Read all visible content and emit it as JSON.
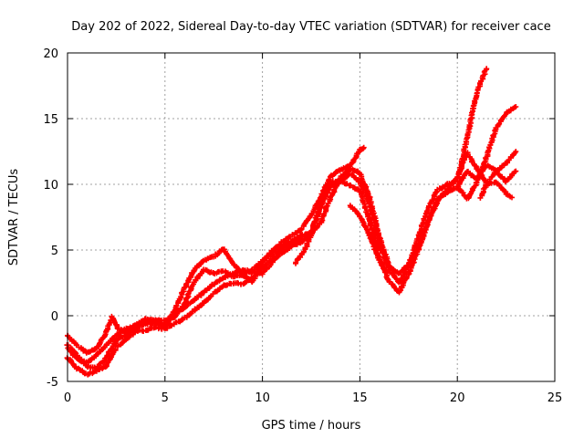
{
  "chart_data": {
    "type": "scatter",
    "title": "Day 202 of 2022, Sidereal Day-to-day VTEC variation (SDTVAR) for receiver cace",
    "xlabel": "GPS time / hours",
    "ylabel": "SDTVAR / TECUs",
    "xlim": [
      0,
      25
    ],
    "ylim": [
      -5,
      20
    ],
    "xticks": [
      0,
      5,
      10,
      15,
      20,
      25
    ],
    "yticks": [
      -5,
      0,
      5,
      10,
      15,
      20
    ],
    "xtick_labels": [
      "0",
      "5",
      "10",
      "15",
      "20",
      "25"
    ],
    "ytick_labels": [
      "-5",
      "0",
      "5",
      "10",
      "15",
      "20"
    ],
    "grid": true,
    "marker": "+",
    "color": "#ff0000",
    "series": [
      {
        "name": "trace-1",
        "points": [
          [
            0.0,
            -1.5
          ],
          [
            0.5,
            -2.3
          ],
          [
            1.0,
            -2.8
          ],
          [
            1.5,
            -2.5
          ],
          [
            2.0,
            -1.2
          ],
          [
            2.3,
            -0.1
          ],
          [
            2.6,
            -1.0
          ],
          [
            3.0,
            -1.3
          ],
          [
            3.5,
            -0.7
          ],
          [
            4.0,
            -0.2
          ],
          [
            4.5,
            -0.4
          ],
          [
            5.0,
            -0.9
          ],
          [
            5.5,
            0.4
          ],
          [
            6.0,
            2.1
          ],
          [
            6.5,
            3.5
          ],
          [
            7.0,
            4.2
          ],
          [
            7.5,
            4.5
          ],
          [
            8.0,
            5.1
          ],
          [
            8.5,
            4.0
          ],
          [
            9.0,
            3.1
          ],
          [
            9.5,
            2.6
          ],
          [
            10.0,
            4.1
          ],
          [
            10.5,
            4.9
          ],
          [
            11.0,
            5.6
          ],
          [
            11.5,
            6.1
          ],
          [
            12.0,
            6.6
          ],
          [
            12.5,
            7.6
          ],
          [
            13.0,
            9.1
          ],
          [
            13.5,
            10.6
          ],
          [
            14.0,
            11.1
          ],
          [
            14.5,
            11.4
          ],
          [
            15.0,
            12.6
          ],
          [
            15.2,
            12.8
          ]
        ]
      },
      {
        "name": "trace-2",
        "points": [
          [
            0.0,
            -2.5
          ],
          [
            0.5,
            -3.3
          ],
          [
            1.0,
            -3.6
          ],
          [
            1.5,
            -3.0
          ],
          [
            2.0,
            -2.2
          ],
          [
            2.5,
            -1.5
          ],
          [
            3.0,
            -1.0
          ],
          [
            3.5,
            -0.8
          ],
          [
            4.0,
            -0.5
          ],
          [
            4.5,
            -0.3
          ],
          [
            5.0,
            -0.4
          ],
          [
            5.5,
            -0.1
          ],
          [
            6.0,
            0.9
          ],
          [
            6.5,
            2.6
          ],
          [
            7.0,
            3.5
          ],
          [
            7.5,
            3.2
          ],
          [
            8.0,
            3.4
          ],
          [
            8.5,
            3.0
          ],
          [
            9.0,
            3.1
          ],
          [
            9.5,
            3.5
          ],
          [
            10.0,
            4.2
          ],
          [
            10.5,
            4.8
          ],
          [
            11.0,
            5.3
          ],
          [
            11.5,
            5.7
          ],
          [
            12.0,
            6.1
          ],
          [
            12.5,
            6.3
          ],
          [
            13.0,
            8.5
          ],
          [
            13.5,
            10.2
          ],
          [
            14.0,
            10.2
          ],
          [
            14.5,
            10.8
          ],
          [
            15.0,
            10.2
          ],
          [
            15.5,
            8.5
          ],
          [
            16.0,
            5.5
          ],
          [
            16.5,
            3.5
          ],
          [
            17.0,
            2.5
          ],
          [
            17.5,
            3.8
          ],
          [
            18.0,
            6.0
          ],
          [
            18.5,
            8.2
          ],
          [
            19.0,
            9.6
          ],
          [
            19.5,
            10.0
          ],
          [
            20.0,
            10.2
          ],
          [
            20.5,
            13.5
          ],
          [
            21.0,
            17.0
          ],
          [
            21.5,
            18.8
          ]
        ]
      },
      {
        "name": "trace-3",
        "points": [
          [
            0.0,
            -3.2
          ],
          [
            0.5,
            -4.0
          ],
          [
            1.0,
            -4.5
          ],
          [
            1.5,
            -4.2
          ],
          [
            2.0,
            -3.8
          ],
          [
            2.5,
            -2.4
          ],
          [
            3.0,
            -1.8
          ],
          [
            3.5,
            -1.2
          ],
          [
            4.0,
            -1.1
          ],
          [
            4.5,
            -0.9
          ],
          [
            5.0,
            -1.0
          ],
          [
            5.5,
            -0.6
          ],
          [
            6.0,
            -0.2
          ],
          [
            6.5,
            0.4
          ],
          [
            7.0,
            1.0
          ],
          [
            7.5,
            1.7
          ],
          [
            8.0,
            2.3
          ],
          [
            8.5,
            2.5
          ],
          [
            9.0,
            2.4
          ],
          [
            9.5,
            2.9
          ],
          [
            10.0,
            3.6
          ],
          [
            10.5,
            4.4
          ],
          [
            11.0,
            5.1
          ],
          [
            11.5,
            5.5
          ],
          [
            12.0,
            5.9
          ],
          [
            12.5,
            6.3
          ],
          [
            13.0,
            7.1
          ],
          [
            13.5,
            9.0
          ],
          [
            14.0,
            10.5
          ],
          [
            14.5,
            11.2
          ],
          [
            15.0,
            10.9
          ],
          [
            15.5,
            9.0
          ],
          [
            16.0,
            6.0
          ],
          [
            16.5,
            3.8
          ],
          [
            17.0,
            3.2
          ],
          [
            17.5,
            3.9
          ],
          [
            18.0,
            5.2
          ],
          [
            18.5,
            7.2
          ],
          [
            19.0,
            8.9
          ],
          [
            19.5,
            9.4
          ],
          [
            20.0,
            9.8
          ],
          [
            20.5,
            8.9
          ],
          [
            21.0,
            10.1
          ],
          [
            21.5,
            12.1
          ],
          [
            22.0,
            14.3
          ],
          [
            22.5,
            15.4
          ],
          [
            23.0,
            15.9
          ]
        ]
      },
      {
        "name": "trace-4",
        "points": [
          [
            0.0,
            -2.2
          ],
          [
            0.5,
            -3.0
          ],
          [
            1.0,
            -3.9
          ],
          [
            1.5,
            -4.0
          ],
          [
            2.0,
            -3.2
          ],
          [
            2.5,
            -1.8
          ],
          [
            3.0,
            -1.5
          ],
          [
            3.5,
            -1.0
          ],
          [
            4.0,
            -0.6
          ],
          [
            4.5,
            -0.6
          ],
          [
            5.0,
            -0.5
          ],
          [
            5.5,
            0.2
          ],
          [
            6.0,
            0.6
          ],
          [
            6.5,
            1.2
          ],
          [
            7.0,
            1.8
          ],
          [
            7.5,
            2.4
          ],
          [
            8.0,
            2.9
          ],
          [
            8.5,
            3.2
          ],
          [
            9.0,
            3.5
          ],
          [
            9.5,
            3.3
          ],
          [
            10.0,
            3.2
          ],
          [
            10.5,
            4.1
          ],
          [
            11.0,
            4.8
          ],
          [
            11.5,
            5.3
          ],
          [
            12.0,
            5.6
          ],
          [
            12.5,
            6.3
          ],
          [
            13.0,
            8.3
          ],
          [
            13.5,
            9.9
          ],
          [
            14.0,
            10.3
          ],
          [
            14.5,
            9.9
          ],
          [
            15.0,
            9.5
          ],
          [
            15.5,
            7.2
          ],
          [
            16.0,
            4.4
          ],
          [
            16.5,
            2.6
          ],
          [
            17.0,
            1.8
          ],
          [
            17.5,
            3.2
          ],
          [
            18.0,
            5.0
          ],
          [
            18.5,
            7.1
          ],
          [
            19.0,
            8.8
          ],
          [
            19.5,
            9.6
          ],
          [
            20.0,
            10.5
          ],
          [
            20.5,
            12.4
          ],
          [
            21.0,
            11.2
          ],
          [
            21.5,
            10.1
          ],
          [
            22.0,
            11.0
          ],
          [
            22.5,
            11.6
          ],
          [
            23.0,
            12.5
          ]
        ]
      },
      {
        "name": "trace-5",
        "points": [
          [
            11.7,
            4.0
          ],
          [
            12.2,
            5.1
          ],
          [
            12.6,
            6.5
          ]
        ]
      },
      {
        "name": "trace-6",
        "points": [
          [
            14.5,
            8.4
          ],
          [
            15.0,
            7.6
          ],
          [
            15.5,
            6.1
          ],
          [
            16.0,
            4.2
          ],
          [
            16.4,
            3.3
          ]
        ]
      },
      {
        "name": "trace-7",
        "points": [
          [
            20.0,
            9.8
          ],
          [
            20.5,
            11.0
          ],
          [
            21.0,
            10.4
          ],
          [
            21.5,
            11.5
          ],
          [
            22.0,
            11.0
          ],
          [
            22.5,
            10.2
          ],
          [
            23.0,
            11.0
          ]
        ]
      },
      {
        "name": "trace-8",
        "points": [
          [
            21.2,
            9.0
          ],
          [
            21.5,
            10.0
          ],
          [
            22.0,
            10.2
          ],
          [
            22.5,
            9.3
          ],
          [
            22.8,
            9.0
          ]
        ]
      }
    ]
  }
}
